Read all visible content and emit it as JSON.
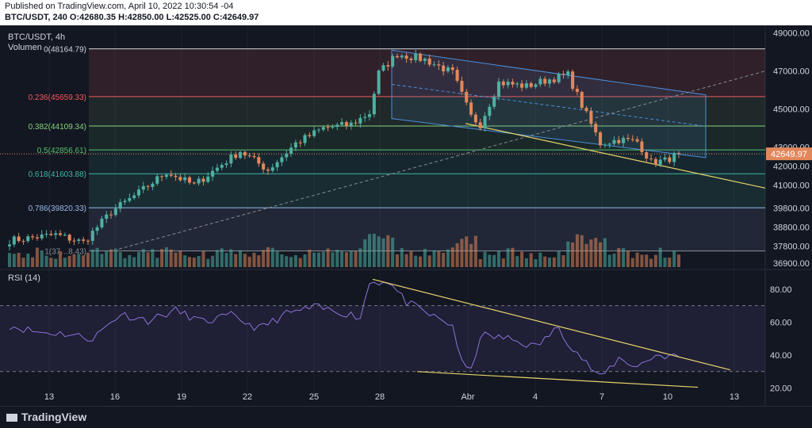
{
  "header": {
    "published": "Published on TradingView.com, April 10, 2022 10:30:54 -04",
    "ohlc": "BTC/USDT, 240 O:42680.35 H:42850.00 L:42525.00 C:42649.97"
  },
  "footer": {
    "brand": "TradingView"
  },
  "colors": {
    "bg": "#131722",
    "up": "#4eb0a2",
    "down": "#e2875a",
    "rsi": "#8c73d9",
    "trend": "#e6d36b",
    "channel": "#4c8ed9"
  },
  "chart_data": [
    {
      "type": "candlestick",
      "title": "BTC/USDT, 4h",
      "volume_label": "Volumen",
      "x_ticks": [
        "13",
        "16",
        "19",
        "22",
        "25",
        "28",
        "Abr",
        "4",
        "7",
        "10",
        "13"
      ],
      "y_ticks": [
        "49000.00",
        "47000.00",
        "45000.00",
        "43000.00",
        "42000.00",
        "41000.00",
        "39800.00",
        "38800.00",
        "37800.00",
        "36900.00"
      ],
      "y_tick_values": [
        49000,
        47000,
        45000,
        43000,
        42000,
        41000,
        39800,
        38800,
        37800,
        36900
      ],
      "ylim": [
        36700,
        49400
      ],
      "last_price": "42649.97",
      "last_value": 42649.97,
      "fib_levels": [
        {
          "label": "0(48164.79)",
          "value": 48164.79,
          "color": "#d1d4dc"
        },
        {
          "label": "0.236(45659.33)",
          "value": 45659.33,
          "color": "#f05a5a"
        },
        {
          "label": "0.382(44109.34)",
          "value": 44109.34,
          "color": "#89d27a"
        },
        {
          "label": "0.5(42856.61)",
          "value": 42856.61,
          "color": "#56c16e"
        },
        {
          "label": "0.618(41603.88)",
          "value": 41603.88,
          "color": "#3fb6a6"
        },
        {
          "label": "0.786(39820.33)",
          "value": 39820.33,
          "color": "#9ab8e8"
        },
        {
          "label": "1(37…8.43)",
          "value": 37548.43,
          "color": "#888c96"
        }
      ],
      "anchors": [
        {
          "i": 0,
          "v": 38100
        },
        {
          "i": 10,
          "v": 38400
        },
        {
          "i": 16,
          "v": 38000
        },
        {
          "i": 22,
          "v": 39600
        },
        {
          "i": 28,
          "v": 40600
        },
        {
          "i": 34,
          "v": 41700
        },
        {
          "i": 40,
          "v": 41000
        },
        {
          "i": 46,
          "v": 42100
        },
        {
          "i": 50,
          "v": 42800
        },
        {
          "i": 56,
          "v": 41800
        },
        {
          "i": 62,
          "v": 43200
        },
        {
          "i": 68,
          "v": 44000
        },
        {
          "i": 74,
          "v": 44200
        },
        {
          "i": 78,
          "v": 44800
        },
        {
          "i": 80,
          "v": 46900
        },
        {
          "i": 84,
          "v": 47900
        },
        {
          "i": 90,
          "v": 47600
        },
        {
          "i": 96,
          "v": 46900
        },
        {
          "i": 100,
          "v": 44600
        },
        {
          "i": 102,
          "v": 44200
        },
        {
          "i": 106,
          "v": 46400
        },
        {
          "i": 112,
          "v": 46200
        },
        {
          "i": 116,
          "v": 46500
        },
        {
          "i": 121,
          "v": 46800
        },
        {
          "i": 124,
          "v": 45200
        },
        {
          "i": 128,
          "v": 43200
        },
        {
          "i": 132,
          "v": 43400
        },
        {
          "i": 136,
          "v": 43300
        },
        {
          "i": 139,
          "v": 42200
        },
        {
          "i": 142,
          "v": 42300
        },
        {
          "i": 145,
          "v": 42650
        }
      ],
      "n_candles": 146,
      "tick_positions": [
        10,
        24,
        38,
        52,
        66,
        80,
        98,
        112,
        126,
        140,
        154
      ]
    },
    {
      "type": "line",
      "title": "RSI (14)",
      "y_ticks": [
        "80.00",
        "60.00",
        "40.00",
        "20.00"
      ],
      "y_tick_values": [
        80,
        60,
        40,
        20
      ],
      "ylim": [
        15,
        90
      ],
      "bands": [
        70,
        30
      ],
      "anchors": [
        {
          "i": 0,
          "v": 58
        },
        {
          "i": 6,
          "v": 54
        },
        {
          "i": 12,
          "v": 53
        },
        {
          "i": 18,
          "v": 50
        },
        {
          "i": 24,
          "v": 65
        },
        {
          "i": 30,
          "v": 61
        },
        {
          "i": 36,
          "v": 67
        },
        {
          "i": 42,
          "v": 60
        },
        {
          "i": 48,
          "v": 64
        },
        {
          "i": 54,
          "v": 56
        },
        {
          "i": 60,
          "v": 65
        },
        {
          "i": 66,
          "v": 69
        },
        {
          "i": 72,
          "v": 66
        },
        {
          "i": 76,
          "v": 63
        },
        {
          "i": 78,
          "v": 84
        },
        {
          "i": 82,
          "v": 85
        },
        {
          "i": 86,
          "v": 72
        },
        {
          "i": 92,
          "v": 63
        },
        {
          "i": 96,
          "v": 58
        },
        {
          "i": 98,
          "v": 35
        },
        {
          "i": 100,
          "v": 30
        },
        {
          "i": 102,
          "v": 52
        },
        {
          "i": 108,
          "v": 50
        },
        {
          "i": 114,
          "v": 45
        },
        {
          "i": 119,
          "v": 57
        },
        {
          "i": 121,
          "v": 48
        },
        {
          "i": 125,
          "v": 35
        },
        {
          "i": 128,
          "v": 26
        },
        {
          "i": 132,
          "v": 38
        },
        {
          "i": 136,
          "v": 33
        },
        {
          "i": 140,
          "v": 40
        },
        {
          "i": 145,
          "v": 39
        }
      ]
    }
  ]
}
